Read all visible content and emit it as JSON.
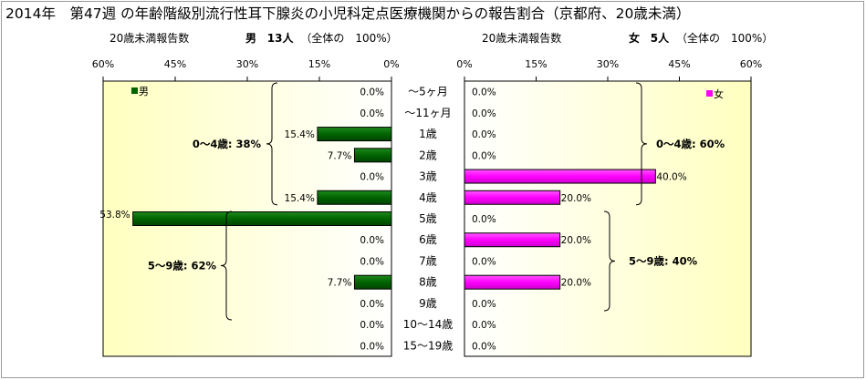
{
  "title": "2014年　第47週 の年齢階級別流行性耳下腺炎の小児科定点医療機関からの報告割合（京都府、20歳未満）",
  "left_header": {
    "label": "20歳未満報告数",
    "sex": "男",
    "count": "13人",
    "note": "（全体の　100%）"
  },
  "right_header": {
    "label": "20歳未満報告数",
    "sex": "女",
    "count": "5人",
    "note": "（全体の　100%）"
  },
  "colors": {
    "male": "#006400",
    "female": "#ff00ff",
    "plot_bg_light": "#ffffff",
    "plot_bg_dark": "#ffffc0"
  },
  "chart_data": [
    {
      "type": "bar",
      "orientation": "horizontal",
      "direction": "right-to-left",
      "legend": "男",
      "legend_position": "top-left",
      "categories": [
        "～5ヶ月",
        "～11ヶ月",
        "1歳",
        "2歳",
        "3歳",
        "4歳",
        "5歳",
        "6歳",
        "7歳",
        "8歳",
        "9歳",
        "10～14歳",
        "15～19歳"
      ],
      "values": [
        0.0,
        0.0,
        15.4,
        7.7,
        0.0,
        15.4,
        53.8,
        0.0,
        0.0,
        7.7,
        0.0,
        0.0,
        0.0
      ],
      "value_labels": [
        "0.0%",
        "0.0%",
        "15.4%",
        "7.7%",
        "0.0%",
        "15.4%",
        "53.8%",
        "0.0%",
        "0.0%",
        "7.7%",
        "0.0%",
        "0.0%",
        "0.0%"
      ],
      "xlim": [
        0,
        60
      ],
      "ticks": [
        "0%",
        "15%",
        "30%",
        "45%",
        "60%"
      ],
      "groups": [
        {
          "label": "0～4歳: 38%",
          "from": 0,
          "to": 5
        },
        {
          "label": "5～9歳: 62%",
          "from": 6,
          "to": 10
        }
      ]
    },
    {
      "type": "bar",
      "orientation": "horizontal",
      "direction": "left-to-right",
      "legend": "女",
      "legend_position": "top-right",
      "categories": [
        "～5ヶ月",
        "～11ヶ月",
        "1歳",
        "2歳",
        "3歳",
        "4歳",
        "5歳",
        "6歳",
        "7歳",
        "8歳",
        "9歳",
        "10～14歳",
        "15～19歳"
      ],
      "values": [
        0.0,
        0.0,
        0.0,
        0.0,
        40.0,
        20.0,
        0.0,
        20.0,
        0.0,
        20.0,
        0.0,
        0.0,
        0.0
      ],
      "value_labels": [
        "0.0%",
        "0.0%",
        "0.0%",
        "0.0%",
        "40.0%",
        "20.0%",
        "0.0%",
        "20.0%",
        "0.0%",
        "20.0%",
        "0.0%",
        "0.0%",
        "0.0%"
      ],
      "xlim": [
        0,
        60
      ],
      "ticks": [
        "0%",
        "15%",
        "30%",
        "45%",
        "60%"
      ],
      "groups": [
        {
          "label": "0～4歳: 60%",
          "from": 0,
          "to": 5
        },
        {
          "label": "5～9歳: 40%",
          "from": 6,
          "to": 10
        }
      ]
    }
  ]
}
